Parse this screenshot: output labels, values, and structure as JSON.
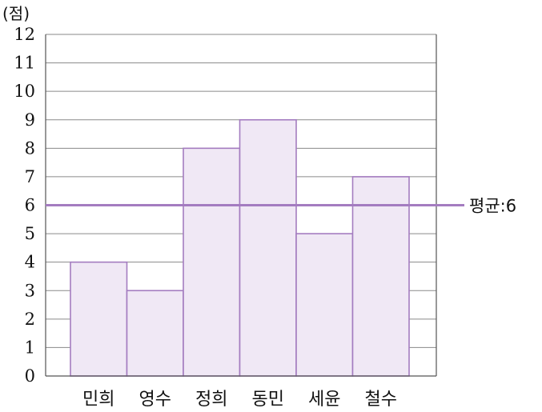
{
  "chart_data": {
    "type": "bar",
    "categories": [
      "민희",
      "영수",
      "정희",
      "동민",
      "세윤",
      "철수"
    ],
    "values": [
      4,
      3,
      8,
      9,
      5,
      7
    ],
    "ylabel": "(점)",
    "ylim": [
      0,
      12
    ],
    "yticks": [
      0,
      1,
      2,
      3,
      4,
      5,
      6,
      7,
      8,
      9,
      10,
      11,
      12
    ],
    "grid": true,
    "reference_line": {
      "value": 6,
      "label": "평균:6"
    },
    "colors": {
      "bar_fill": "#f0e8f5",
      "bar_stroke": "#a47cc0",
      "avg_line": "#a47cc0",
      "grid": "#8a8a8a",
      "axis": "#555555"
    }
  }
}
